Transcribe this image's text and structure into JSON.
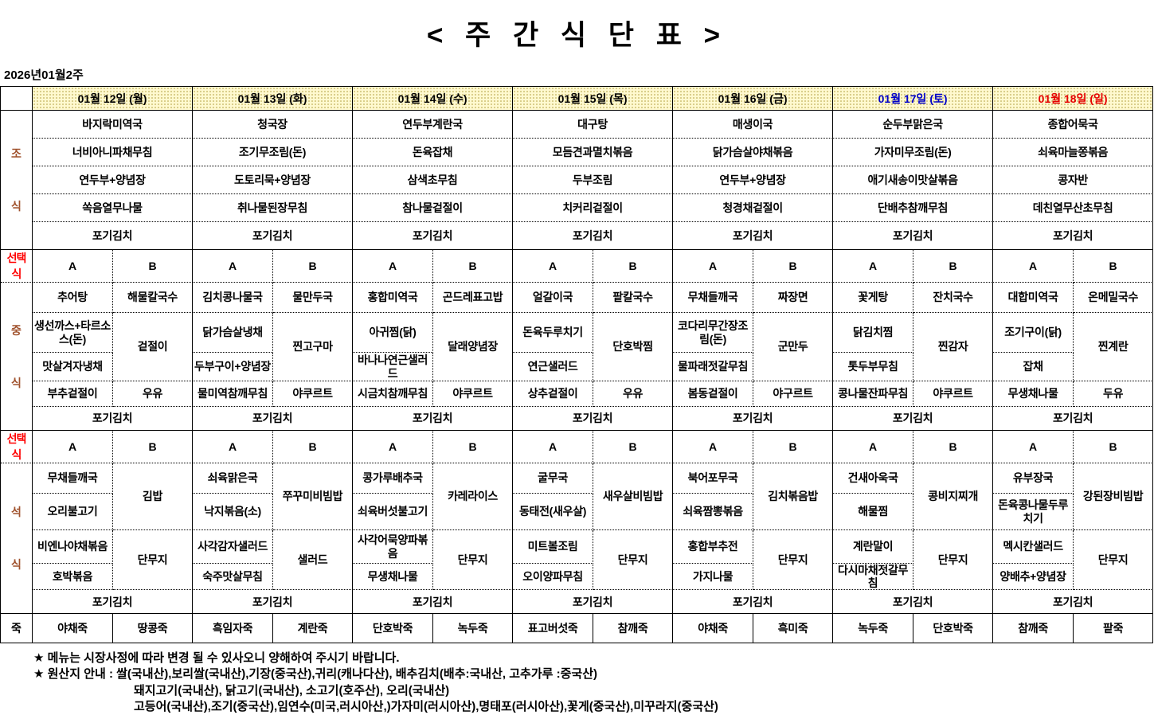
{
  "title": "< 주 간 식 단 표 >",
  "week_label": "2026년01월2주",
  "colors": {
    "header_bg": "#FFF9CF",
    "weekday_text": "#000000",
    "saturday_text": "#0000C8",
    "sunday_text": "#E60000",
    "section_label": "#A0522D",
    "choice_label": "#FF0000"
  },
  "table": {
    "days": [
      {
        "label": "01월 12일 (월)",
        "color": "#000000"
      },
      {
        "label": "01월 13일 (화)",
        "color": "#000000"
      },
      {
        "label": "01월 14일 (수)",
        "color": "#000000"
      },
      {
        "label": "01월 15일 (목)",
        "color": "#000000"
      },
      {
        "label": "01월 16일 (금)",
        "color": "#000000"
      },
      {
        "label": "01월 17일 (토)",
        "color": "#0000C8"
      },
      {
        "label": "01월 18일 (일)",
        "color": "#E60000"
      }
    ],
    "sections": {
      "breakfast": [
        "조",
        "식"
      ],
      "lunch": [
        "중",
        "식"
      ],
      "dinner": [
        "석",
        "식"
      ],
      "choice": "선택식",
      "porridge": "죽"
    },
    "choice_headers": [
      "A",
      "B"
    ],
    "breakfast": [
      [
        "바지락미역국",
        "너비아니파채무침",
        "연두부+양념장",
        "쏙음열무나물",
        "포기김치"
      ],
      [
        "청국장",
        "조기무조림(돈)",
        "도토리묵+양념장",
        "취나물된장무침",
        "포기김치"
      ],
      [
        "연두부계란국",
        "돈육잡채",
        "삼색초무침",
        "참나물겉절이",
        "포기김치"
      ],
      [
        "대구탕",
        "모듬견과멸치볶음",
        "두부조림",
        "치커리겉절이",
        "포기김치"
      ],
      [
        "매생이국",
        "닭가슴살야채볶음",
        "연두부+양념장",
        "청경채겉절이",
        "포기김치"
      ],
      [
        "순두부맑은국",
        "가자미무조림(돈)",
        "애기새송이맛살볶음",
        "단배추참깨무침",
        "포기김치"
      ],
      [
        "종합어묵국",
        "쇠육마늘쫑볶음",
        "콩자반",
        "데친열무산초무침",
        "포기김치"
      ]
    ],
    "lunch": {
      "a": [
        [
          "추어탕",
          "생선까스+타르소스(돈)",
          "맛살겨자냉채",
          "부추겉절이"
        ],
        [
          "김치콩나물국",
          "닭가슴살냉채",
          "두부구이+양념장",
          "물미역참깨무침"
        ],
        [
          "홍합미역국",
          "아귀찜(닭)",
          "바나나연근샐러드",
          "시금치참깨무침"
        ],
        [
          "얼갈이국",
          "돈육두루치기",
          "연근샐러드",
          "상추겉절이"
        ],
        [
          "무채들깨국",
          "코다리무간장조림(돈)",
          "물파래젓갈무침",
          "봄동겉절이"
        ],
        [
          "꽃게탕",
          "닭김치찜",
          "톳두부무침",
          "콩나물잔파무침"
        ],
        [
          "대합미역국",
          "조기구이(닭)",
          "잡채",
          "무생채나물"
        ]
      ],
      "b": [
        [
          "해물칼국수",
          "겉절이",
          "우유"
        ],
        [
          "물만두국",
          "찐고구마",
          "야쿠르트"
        ],
        [
          "곤드레표고밥",
          "달래양념장",
          "야쿠르트"
        ],
        [
          "팥칼국수",
          "단호박찜",
          "우유"
        ],
        [
          "짜장면",
          "군만두",
          "야구르트"
        ],
        [
          "잔치국수",
          "찐감자",
          "야쿠르트"
        ],
        [
          "온메밀국수",
          "찐계란",
          "두유"
        ]
      ],
      "kimchi": [
        "포기김치",
        "포기김치",
        "포기김치",
        "포기김치",
        "포기김치",
        "포기김치",
        "포기김치"
      ]
    },
    "dinner": {
      "a": [
        [
          "무채들깨국",
          "오리불고기",
          "비엔나야채볶음",
          "호박볶음"
        ],
        [
          "쇠육맑은국",
          "낙지볶음(소)",
          "사각감자샐러드",
          "숙주맛살무침"
        ],
        [
          "콩가루배추국",
          "쇠육버섯불고기",
          "사각어묵양파볶음",
          "무생채나물"
        ],
        [
          "굴무국",
          "동태전(새우살)",
          "미트볼조림",
          "오이양파무침"
        ],
        [
          "북어포무국",
          "쇠육짬뽕볶음",
          "홍합부추전",
          "가지나물"
        ],
        [
          "건새아욱국",
          "해물찜",
          "계란말이",
          "다시마채젓갈무침"
        ],
        [
          "유부장국",
          "돈육콩나물두루치기",
          "멕시칸샐러드",
          "양배추+양념장"
        ]
      ],
      "b": [
        [
          "김밥",
          "단무지"
        ],
        [
          "쭈꾸미비빔밥",
          "샐러드"
        ],
        [
          "카레라이스",
          "단무지"
        ],
        [
          "새우살비빔밥",
          "단무지"
        ],
        [
          "김치볶음밥",
          "단무지"
        ],
        [
          "콩비지찌개",
          "단무지"
        ],
        [
          "강된장비빔밥",
          "단무지"
        ]
      ],
      "kimchi": [
        "포기김치",
        "포기김치",
        "포기김치",
        "포기김치",
        "포기김치",
        "포기김치",
        "포기김치"
      ]
    },
    "porridge": [
      [
        "야채죽",
        "땅콩죽"
      ],
      [
        "흑임자죽",
        "계란죽"
      ],
      [
        "단호박죽",
        "녹두죽"
      ],
      [
        "표고버섯죽",
        "참깨죽"
      ],
      [
        "야채죽",
        "흑미죽"
      ],
      [
        "녹두죽",
        "단호박죽"
      ],
      [
        "참깨죽",
        "팥죽"
      ]
    ]
  },
  "footer": {
    "lines": [
      {
        "text": "★ 메뉴는 시장사정에 따라 변경 될 수 있사오니 양해하여 주시기 바랍니다."
      },
      {
        "text": "★ 원산지 안내 : 쌀(국내산),보리쌀(국내산),기장(중국산),귀리(캐나다산), 배추김치(배추:국내산, 고추가루 :중국산)"
      },
      {
        "text": "돼지고기(국내산), 닭고기(국내산), 소고기(호주산), 오리(국내산)"
      },
      {
        "text": "고등어(국내산),조기(중국산),임연수(미국,러시아산,)가자미(러시아산),명태포(러시아산),꽃게(중국산),미꾸라지(중국산)"
      }
    ]
  }
}
